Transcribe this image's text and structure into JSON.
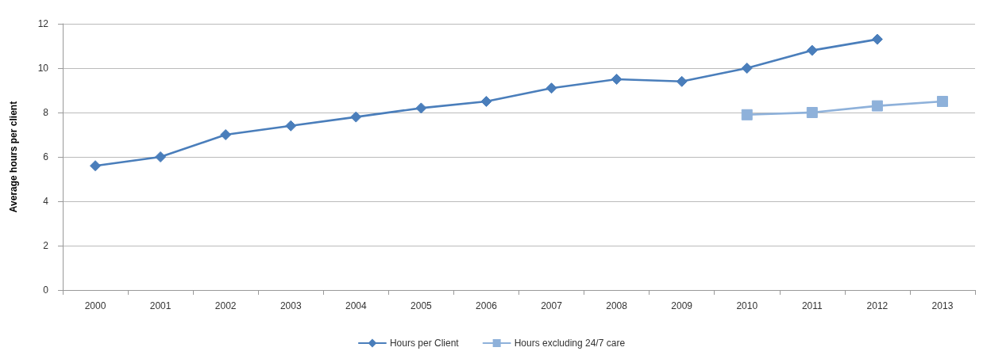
{
  "chart_data": {
    "type": "line",
    "ylabel": "Average hours per client",
    "categories": [
      "2000",
      "2001",
      "2002",
      "2003",
      "2004",
      "2005",
      "2006",
      "2007",
      "2008",
      "2009",
      "2010",
      "2011",
      "2012",
      "2013"
    ],
    "series": [
      {
        "name": "Hours per Client",
        "color": "#4a7ebb",
        "marker": "diamond",
        "values": [
          5.6,
          6.0,
          7.0,
          7.4,
          7.8,
          8.2,
          8.5,
          9.1,
          9.5,
          9.4,
          10.0,
          10.8,
          11.3,
          null
        ]
      },
      {
        "name": "Hours excluding 24/7 care",
        "color": "#8eb1da",
        "marker": "square",
        "values": [
          null,
          null,
          null,
          null,
          null,
          null,
          null,
          null,
          null,
          null,
          7.9,
          8.0,
          8.3,
          8.5
        ]
      }
    ],
    "ylim": [
      0,
      12
    ],
    "yticks": [
      0,
      2,
      4,
      6,
      8,
      10,
      12
    ],
    "grid": "y",
    "legend": "bottom",
    "line_style": "solid"
  }
}
